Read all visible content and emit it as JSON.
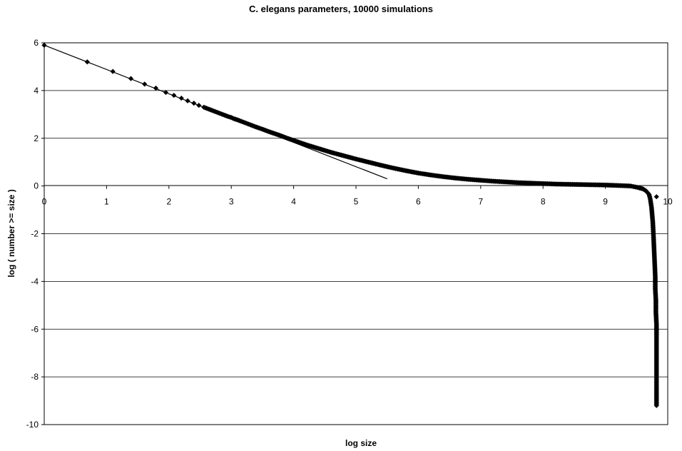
{
  "chart_data": {
    "type": "scatter",
    "title": "C. elegans parameters, 10000 simulations",
    "xlabel": "log size",
    "ylabel": "log  ( number >= size )",
    "xlim": [
      0,
      10
    ],
    "ylim": [
      -10,
      6
    ],
    "x_ticks": [
      "0",
      "1",
      "2",
      "3",
      "4",
      "5",
      "6",
      "7",
      "8",
      "9",
      "10"
    ],
    "y_ticks": [
      "6",
      "4",
      "2",
      "0",
      "-2",
      "-4",
      "-6",
      "-8",
      "-10"
    ],
    "grid": "horizontal",
    "legend": "none",
    "marker_color": "#000000",
    "series": [
      {
        "marker": "diamond",
        "x": [
          0,
          0.69,
          1.1,
          1.39,
          1.61,
          1.79,
          1.95,
          2.08,
          2.2,
          2.3,
          2.4,
          2.48,
          2.56,
          2.64,
          2.71,
          2.77,
          2.83,
          2.89,
          2.94,
          3.0,
          3.04,
          3.09,
          3.14,
          3.18,
          3.22,
          3.26,
          3.3,
          3.4,
          3.5,
          3.6,
          3.7,
          3.8,
          3.9,
          4.0,
          4.2,
          4.4,
          4.6,
          4.8,
          5.0,
          5.2,
          5.4,
          5.6,
          5.8,
          6.0,
          6.2,
          6.4,
          6.6,
          6.8,
          7.0,
          7.2,
          7.4,
          7.6,
          7.8,
          8.0,
          8.2,
          8.4,
          8.6,
          8.8,
          9.0,
          9.2,
          9.4,
          9.5,
          9.6,
          9.65,
          9.7,
          9.72,
          9.74,
          9.76,
          9.77,
          9.78,
          9.79,
          9.8,
          9.8,
          9.81,
          9.81,
          9.82,
          9.82,
          9.82,
          9.82,
          9.82,
          9.82,
          9.82,
          9.82,
          9.82,
          9.82,
          9.82,
          9.82,
          9.82
        ],
        "y": [
          5.9,
          5.2,
          4.8,
          4.5,
          4.27,
          4.1,
          3.92,
          3.8,
          3.68,
          3.57,
          3.47,
          3.38,
          3.3,
          3.22,
          3.15,
          3.09,
          3.03,
          2.97,
          2.92,
          2.87,
          2.82,
          2.78,
          2.73,
          2.69,
          2.65,
          2.61,
          2.57,
          2.47,
          2.38,
          2.28,
          2.19,
          2.1,
          2.0,
          1.91,
          1.73,
          1.57,
          1.41,
          1.27,
          1.13,
          1.0,
          0.87,
          0.75,
          0.64,
          0.54,
          0.46,
          0.39,
          0.33,
          0.28,
          0.24,
          0.2,
          0.17,
          0.14,
          0.12,
          0.1,
          0.08,
          0.07,
          0.06,
          0.05,
          0.04,
          0.02,
          0.0,
          -0.05,
          -0.12,
          -0.2,
          -0.35,
          -0.55,
          -0.9,
          -1.5,
          -2.0,
          -2.6,
          -3.2,
          -3.8,
          -4.3,
          -4.8,
          -5.3,
          -5.8,
          -6.3,
          -6.6,
          -6.9,
          -7.1,
          -7.3,
          -7.5,
          -7.6,
          -7.8,
          -8.1,
          -8.5,
          -9.2,
          -0.45
        ]
      }
    ],
    "fit_line": {
      "x": [
        0,
        5.5
      ],
      "y": [
        5.9,
        0.3
      ]
    }
  }
}
